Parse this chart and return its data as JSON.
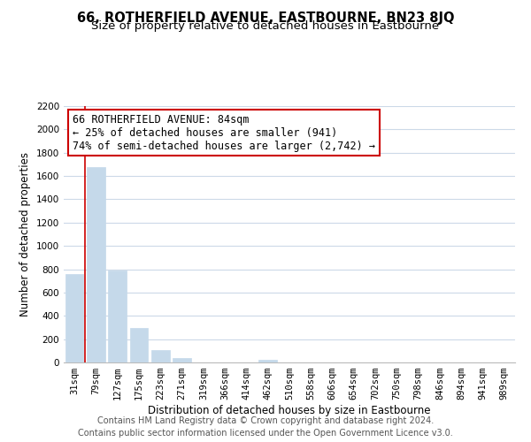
{
  "title": "66, ROTHERFIELD AVENUE, EASTBOURNE, BN23 8JQ",
  "subtitle": "Size of property relative to detached houses in Eastbourne",
  "xlabel": "Distribution of detached houses by size in Eastbourne",
  "ylabel": "Number of detached properties",
  "bar_labels": [
    "31sqm",
    "79sqm",
    "127sqm",
    "175sqm",
    "223sqm",
    "271sqm",
    "319sqm",
    "366sqm",
    "414sqm",
    "462sqm",
    "510sqm",
    "558sqm",
    "606sqm",
    "654sqm",
    "702sqm",
    "750sqm",
    "798sqm",
    "846sqm",
    "894sqm",
    "941sqm",
    "989sqm"
  ],
  "bar_values": [
    760,
    1680,
    790,
    295,
    110,
    35,
    0,
    0,
    0,
    20,
    0,
    0,
    0,
    0,
    0,
    0,
    0,
    0,
    0,
    0,
    0
  ],
  "bar_color": "#c5d9ea",
  "vline_color": "#cc0000",
  "ylim": [
    0,
    2200
  ],
  "yticks": [
    0,
    200,
    400,
    600,
    800,
    1000,
    1200,
    1400,
    1600,
    1800,
    2000,
    2200
  ],
  "annotation_title": "66 ROTHERFIELD AVENUE: 84sqm",
  "annotation_line1": "← 25% of detached houses are smaller (941)",
  "annotation_line2": "74% of semi-detached houses are larger (2,742) →",
  "footer_line1": "Contains HM Land Registry data © Crown copyright and database right 2024.",
  "footer_line2": "Contains public sector information licensed under the Open Government Licence v3.0.",
  "bg_color": "#ffffff",
  "grid_color": "#ccd9e8",
  "annotation_box_color": "#ffffff",
  "annotation_box_edge": "#cc0000",
  "title_fontsize": 10.5,
  "subtitle_fontsize": 9.5,
  "axis_label_fontsize": 8.5,
  "tick_fontsize": 7.5,
  "annotation_fontsize": 8.5,
  "footer_fontsize": 7
}
